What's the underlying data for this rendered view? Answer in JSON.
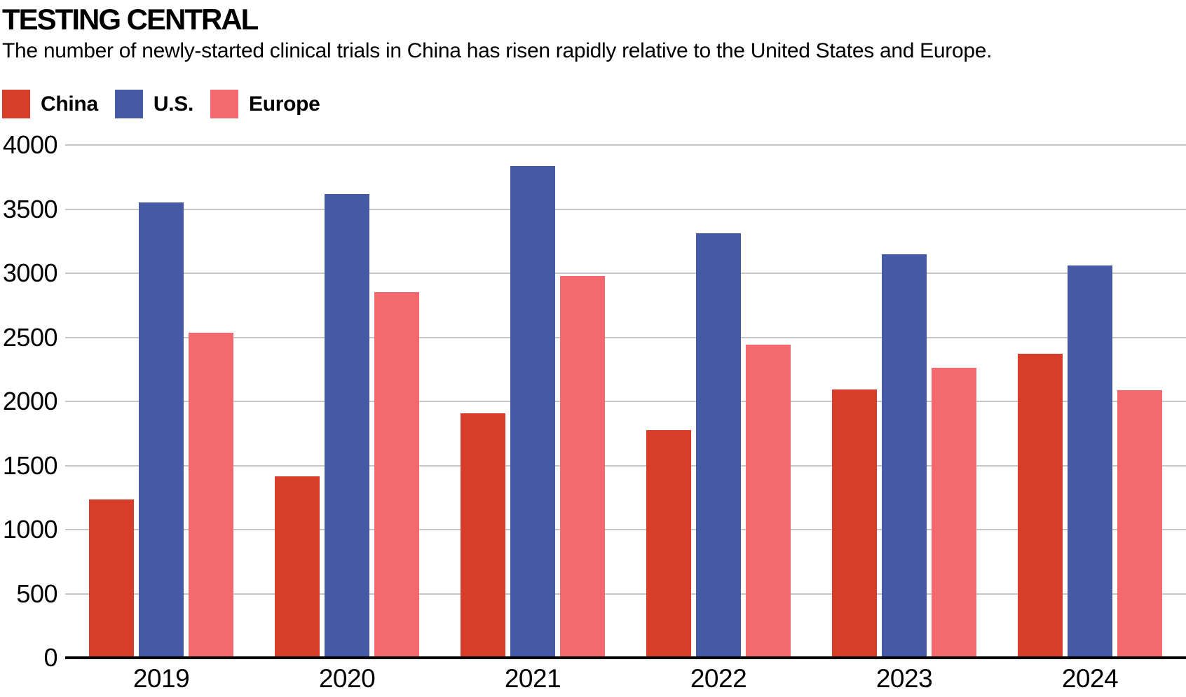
{
  "header": {
    "title": "TESTING CENTRAL",
    "subtitle": "The number of newly-started clinical trials in China has risen rapidly relative to the United States and Europe."
  },
  "chart_data": {
    "type": "bar",
    "title": "TESTING CENTRAL",
    "subtitle": "The number of newly-started clinical trials in China has risen rapidly relative to the United States and Europe.",
    "categories": [
      "2019",
      "2020",
      "2021",
      "2022",
      "2023",
      "2024"
    ],
    "series": [
      {
        "name": "China",
        "color": "#d63e2a",
        "values": [
          1235,
          1415,
          1905,
          1775,
          2095,
          2370
        ]
      },
      {
        "name": "U.S.",
        "color": "#4559a4",
        "values": [
          3550,
          3620,
          3835,
          3310,
          3145,
          3060
        ]
      },
      {
        "name": "Europe",
        "color": "#f4696e",
        "values": [
          2535,
          2850,
          2980,
          2445,
          2265,
          2085
        ]
      }
    ],
    "xlabel": "",
    "ylabel": "",
    "ylim": [
      0,
      4000
    ],
    "yticks": [
      0,
      500,
      1000,
      1500,
      2000,
      2500,
      3000,
      3500,
      4000
    ],
    "grid": "horizontal",
    "legend_position": "top-left"
  },
  "colors": {
    "background": "#ffffff",
    "gridline": "#c7c7c7",
    "axis": "#000000",
    "text": "#000000"
  }
}
